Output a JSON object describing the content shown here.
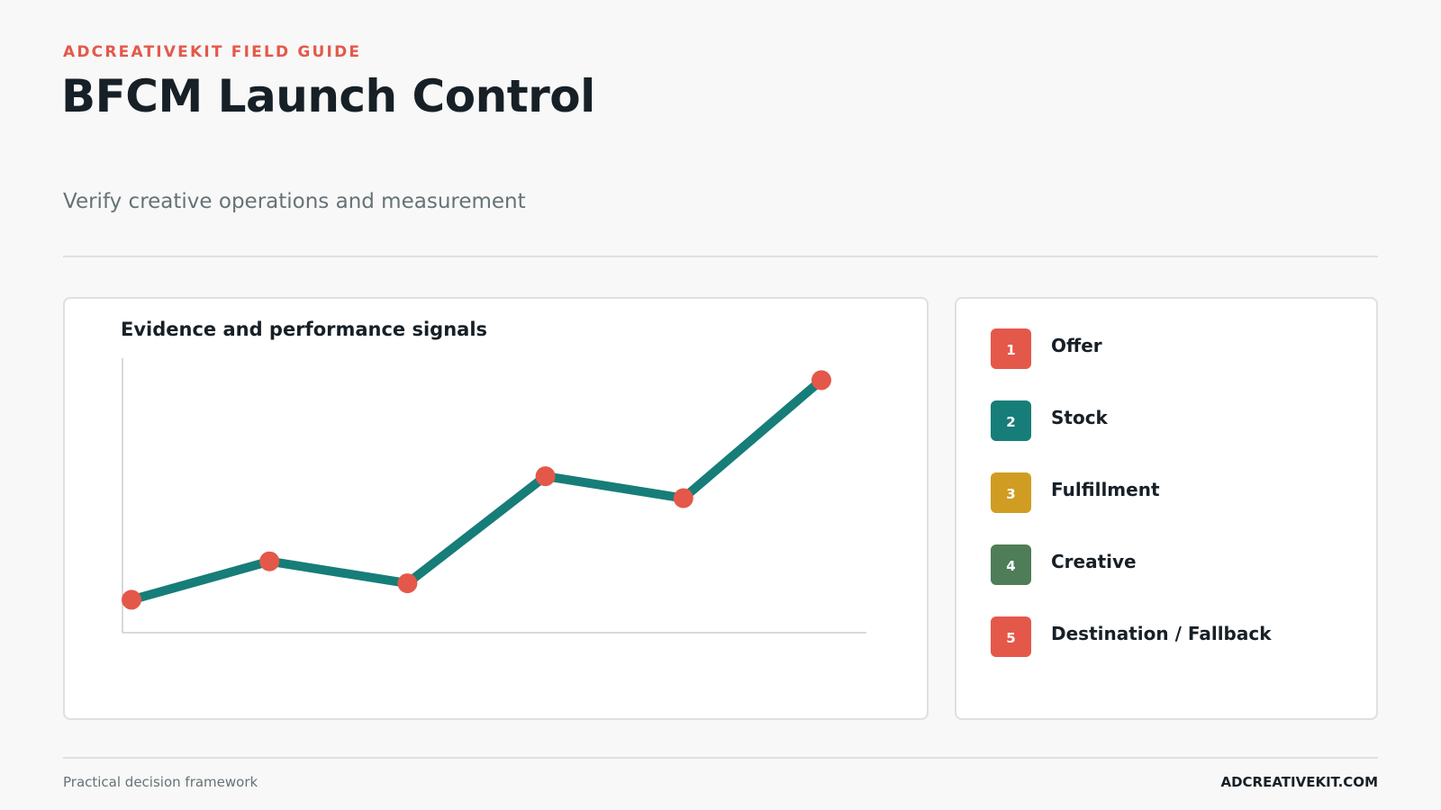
{
  "header": {
    "eyebrow": "ADCREATIVEKIT FIELD GUIDE",
    "title": "BFCM Launch Control",
    "subtitle": "Verify creative operations and measurement"
  },
  "legend": {
    "items": [
      {
        "number": "1",
        "label": "Offer",
        "color": "#e4584a"
      },
      {
        "number": "2",
        "label": "Stock",
        "color": "#177d78"
      },
      {
        "number": "3",
        "label": "Fulfillment",
        "color": "#d09c22"
      },
      {
        "number": "4",
        "label": "Creative",
        "color": "#4e7d57"
      },
      {
        "number": "5",
        "label": "Destination / Fallback",
        "color": "#e4584a"
      }
    ]
  },
  "footer": {
    "left": "Practical decision framework",
    "right": "ADCREATIVEKIT.COM"
  },
  "chart_data": {
    "type": "line",
    "title": "Evidence and performance signals",
    "xlabel": "",
    "ylabel": "",
    "x": [
      1,
      2,
      3,
      4,
      5,
      6
    ],
    "series": [
      {
        "values": [
          12,
          26,
          18,
          57,
          49,
          92
        ],
        "line_color": "#177d78",
        "point_color": "#e4584a"
      }
    ],
    "ylim": [
      0,
      100
    ],
    "grid": false
  }
}
